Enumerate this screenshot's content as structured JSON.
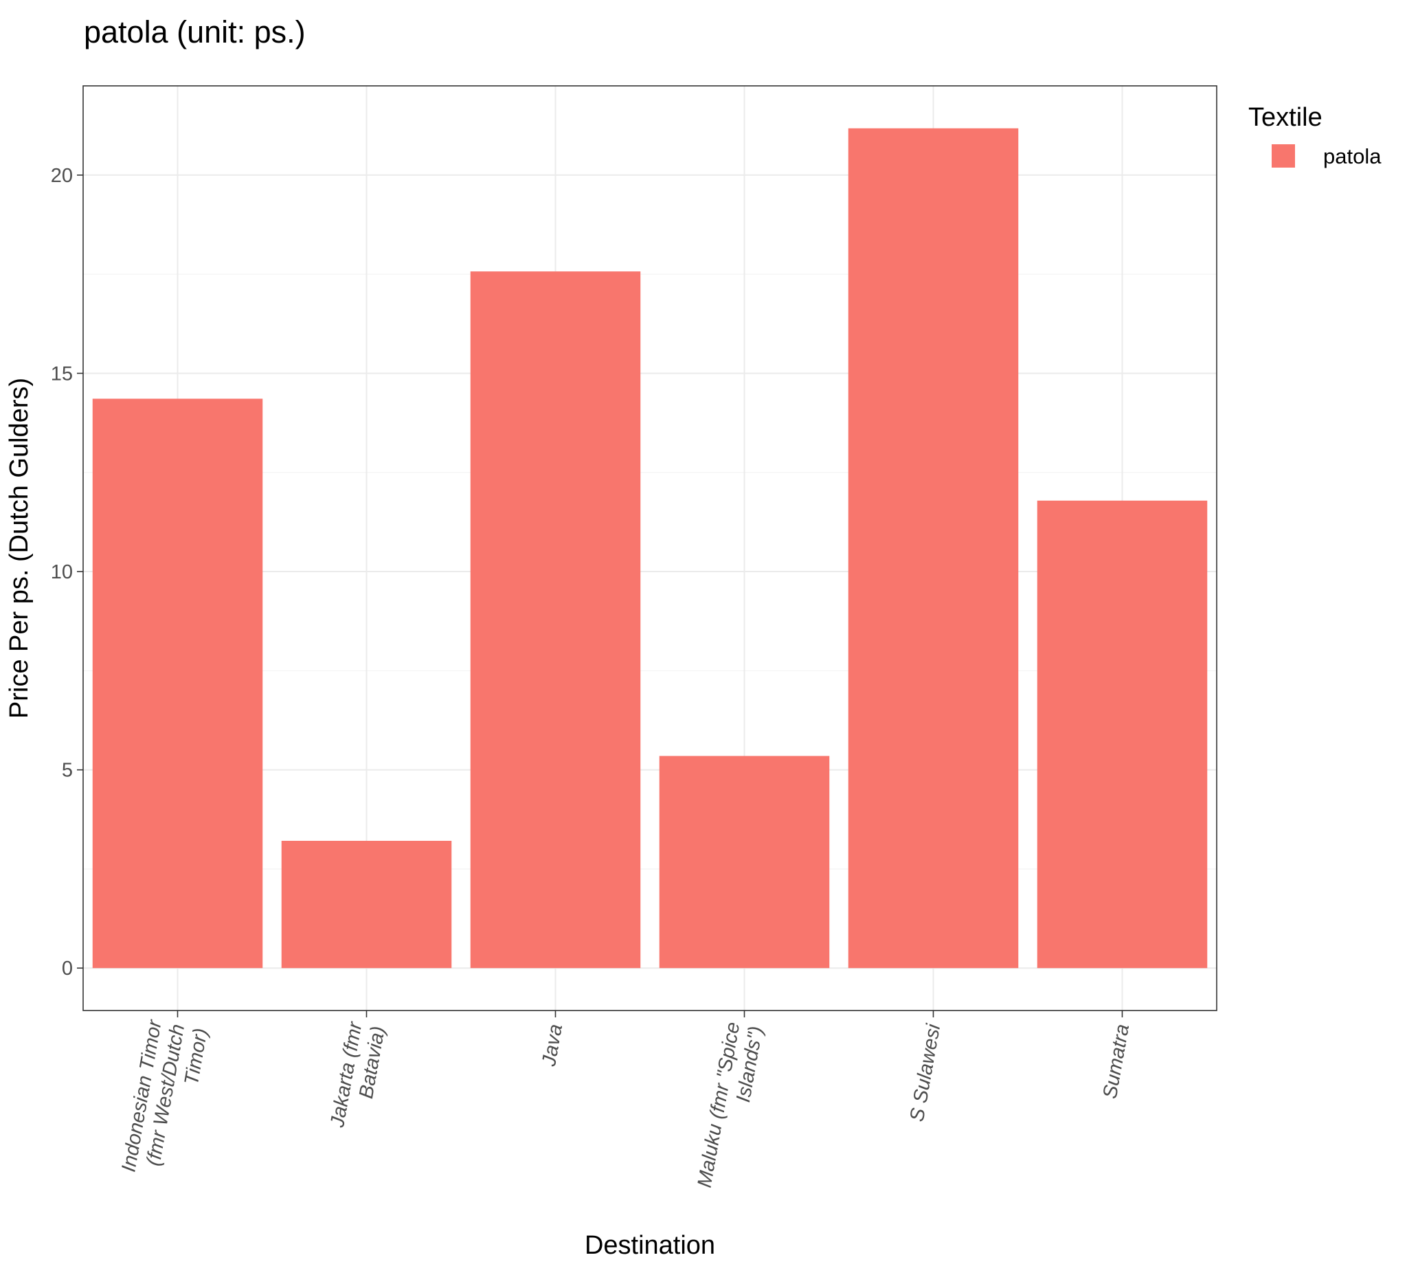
{
  "chart_data": {
    "type": "bar",
    "title": "patola (unit: ps.)",
    "xlabel": "Destination",
    "ylabel": "Price Per ps. (Dutch Gulders)",
    "categories": [
      "Indonesian Timor\n(fmr West/Dutch\nTimor)",
      "Jakarta (fmr\nBatavia)",
      "Java",
      "Maluku (fmr \"Spice\nIslands\")",
      "S Sulawesi",
      "Sumatra"
    ],
    "series": [
      {
        "name": "patola",
        "color": "#F8766D",
        "values": [
          14.36,
          3.21,
          17.57,
          5.35,
          21.18,
          11.79
        ]
      }
    ],
    "ylim": [
      -1.07,
      22.25
    ],
    "yticks": [
      0,
      5,
      10,
      15,
      20
    ],
    "ytick_labels": [
      "0",
      "5",
      "10",
      "15",
      "20"
    ],
    "grid": true,
    "legend": {
      "title": "Textile",
      "placement": "right",
      "entries": [
        "patola"
      ]
    }
  }
}
